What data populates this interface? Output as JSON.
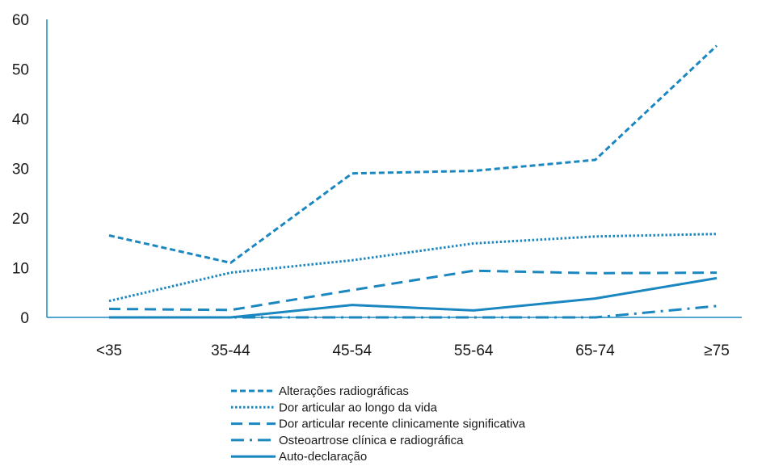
{
  "chart_data": {
    "type": "line",
    "title": "",
    "xlabel": "",
    "ylabel": "",
    "categories": [
      "<35",
      "35-44",
      "45-54",
      "55-64",
      "65-74",
      "≥75"
    ],
    "ylim": [
      0,
      60
    ],
    "yticks": [
      0,
      10,
      20,
      30,
      40,
      50,
      60
    ],
    "grid": false,
    "legend_position": "bottom",
    "series": [
      {
        "name": "Alterações radiográficas",
        "values": [
          16.5,
          11,
          29,
          29.5,
          31.7,
          54.7
        ],
        "style": "dashed",
        "color": "#1b87c0"
      },
      {
        "name": "Dor articular ao longo da vida",
        "values": [
          3.3,
          9,
          11.5,
          14.9,
          16.3,
          16.8
        ],
        "style": "dotted",
        "color": "#1b87c0"
      },
      {
        "name": "Dor articular recente clinicamente significativa",
        "values": [
          1.7,
          1.5,
          5.5,
          9.4,
          8.9,
          9
        ],
        "style": "long-dash",
        "color": "#1b87c0"
      },
      {
        "name": "Osteoartrose clínica e radiográfica",
        "values": [
          0,
          0,
          0,
          0,
          0,
          2.3
        ],
        "style": "dash-dot",
        "color": "#1b87c0"
      },
      {
        "name": "Auto-declaração",
        "values": [
          0,
          0,
          2.5,
          1.4,
          3.8,
          7.9
        ],
        "style": "solid",
        "color": "#1b87c0"
      }
    ]
  }
}
